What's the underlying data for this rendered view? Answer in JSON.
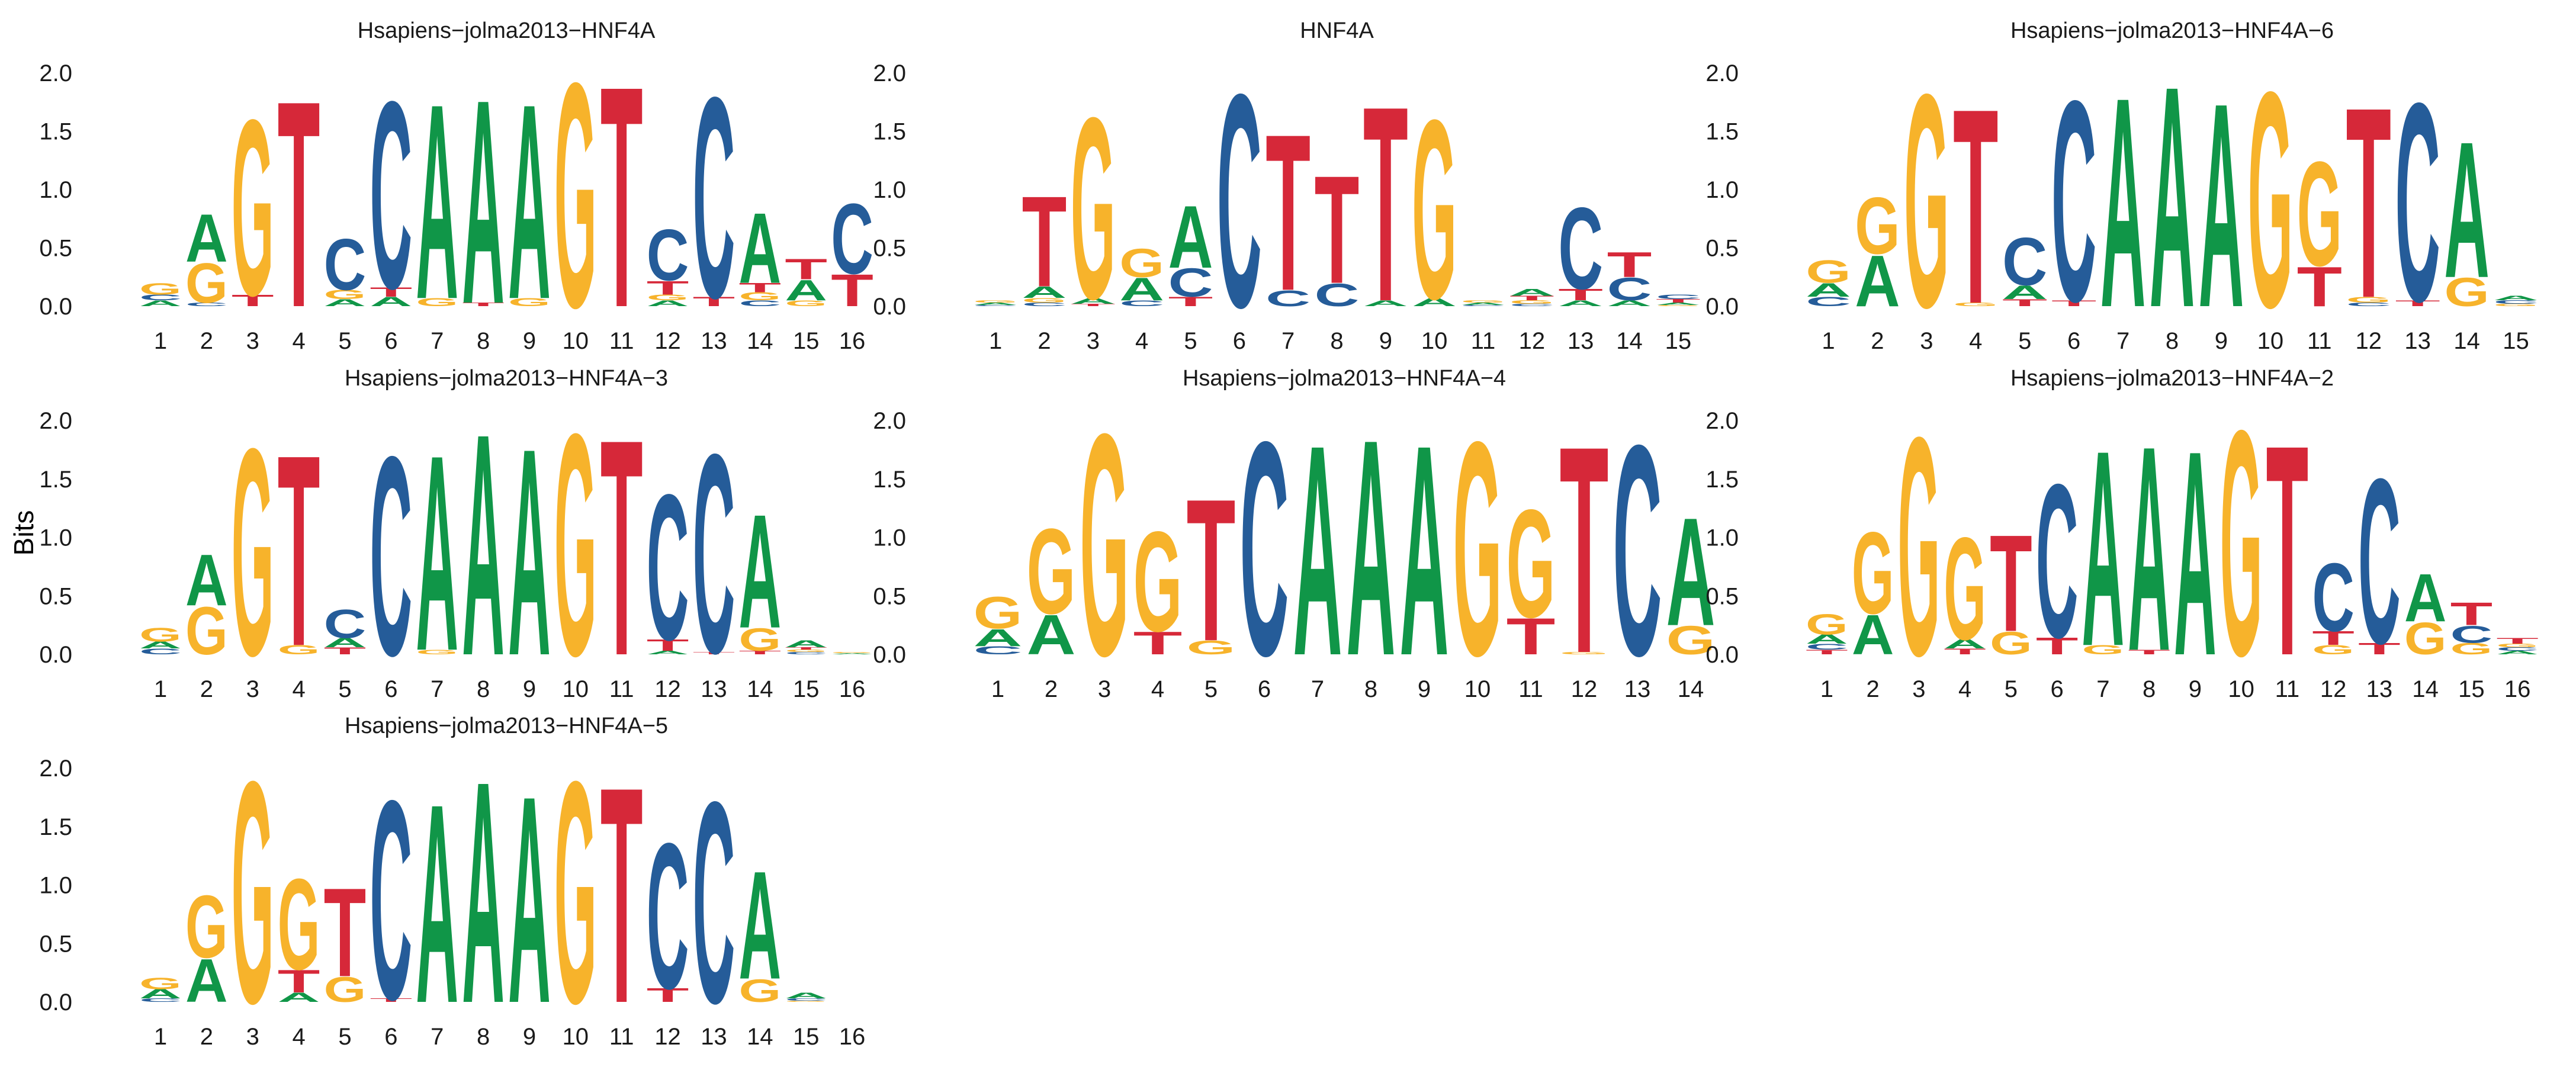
{
  "ylabel": "Bits",
  "colors": {
    "A": "#109648",
    "C": "#255C99",
    "G": "#F7B32B",
    "T": "#D62839"
  },
  "chart_data": [
    {
      "type": "sequence-logo",
      "title": "Hsapiens−jolma2013−HNF4A",
      "ylabel": "Bits",
      "ylim": [
        0,
        2
      ],
      "yticks": [
        "0.0",
        "0.5",
        "1.0",
        "1.5",
        "2.0"
      ],
      "positions": [
        "1",
        "2",
        "3",
        "4",
        "5",
        "6",
        "7",
        "8",
        "9",
        "10",
        "11",
        "12",
        "13",
        "14",
        "15",
        "16"
      ],
      "columns": [
        {
          "A": 0.05,
          "C": 0.05,
          "G": 0.1,
          "T": 0.0
        },
        {
          "A": 0.42,
          "C": 0.03,
          "G": 0.35,
          "T": 0.0
        },
        {
          "A": 0.0,
          "C": 0.0,
          "G": 1.55,
          "T": 0.1
        },
        {
          "A": 0.0,
          "C": 0.0,
          "G": 0.0,
          "T": 1.82
        },
        {
          "A": 0.06,
          "C": 0.45,
          "G": 0.08,
          "T": 0.0
        },
        {
          "A": 0.08,
          "C": 1.65,
          "G": 0.0,
          "T": 0.08
        },
        {
          "A": 1.72,
          "C": 0.0,
          "G": 0.07,
          "T": 0.0
        },
        {
          "A": 1.8,
          "C": 0.0,
          "G": 0.0,
          "T": 0.03
        },
        {
          "A": 1.72,
          "C": 0.0,
          "G": 0.07,
          "T": 0.0
        },
        {
          "A": 0.0,
          "C": 0.0,
          "G": 1.98,
          "T": 0.0
        },
        {
          "A": 0.0,
          "C": 0.0,
          "G": 0.0,
          "T": 1.95
        },
        {
          "A": 0.05,
          "C": 0.45,
          "G": 0.05,
          "T": 0.12
        },
        {
          "A": 0.0,
          "C": 1.77,
          "G": 0.0,
          "T": 0.08
        },
        {
          "A": 0.62,
          "C": 0.05,
          "G": 0.07,
          "T": 0.08
        },
        {
          "A": 0.18,
          "C": 0.0,
          "G": 0.05,
          "T": 0.18
        },
        {
          "A": 0.0,
          "C": 0.62,
          "G": 0.0,
          "T": 0.28
        }
      ]
    },
    {
      "type": "sequence-logo",
      "title": "HNF4A",
      "ylabel": "Bits",
      "ylim": [
        0,
        2
      ],
      "yticks": [
        "0.0",
        "0.5",
        "1.0",
        "1.5",
        "2.0"
      ],
      "positions": [
        "1",
        "2",
        "3",
        "4",
        "5",
        "6",
        "7",
        "8",
        "9",
        "10",
        "11",
        "12",
        "13",
        "14",
        "15"
      ],
      "columns": [
        {
          "A": 0.02,
          "C": 0.01,
          "G": 0.02,
          "T": 0.0
        },
        {
          "A": 0.1,
          "C": 0.03,
          "G": 0.04,
          "T": 0.8
        },
        {
          "A": 0.05,
          "C": 0.0,
          "G": 1.6,
          "T": 0.02
        },
        {
          "A": 0.2,
          "C": 0.05,
          "G": 0.25,
          "T": 0.0
        },
        {
          "A": 0.55,
          "C": 0.25,
          "G": 0.0,
          "T": 0.08
        },
        {
          "A": 0.0,
          "C": 1.88,
          "G": 0.0,
          "T": 0.0
        },
        {
          "A": 0.0,
          "C": 0.14,
          "G": 0.0,
          "T": 1.38
        },
        {
          "A": 0.0,
          "C": 0.2,
          "G": 0.0,
          "T": 0.95
        },
        {
          "A": 0.05,
          "C": 0.0,
          "G": 0.0,
          "T": 1.72
        },
        {
          "A": 0.07,
          "C": 0.0,
          "G": 1.58,
          "T": 0.0
        },
        {
          "A": 0.02,
          "C": 0.01,
          "G": 0.02,
          "T": 0.0
        },
        {
          "A": 0.06,
          "C": 0.02,
          "G": 0.03,
          "T": 0.04
        },
        {
          "A": 0.05,
          "C": 0.72,
          "G": 0.0,
          "T": 0.1
        },
        {
          "A": 0.05,
          "C": 0.2,
          "G": 0.0,
          "T": 0.22
        },
        {
          "A": 0.02,
          "C": 0.04,
          "G": 0.01,
          "T": 0.03
        }
      ]
    },
    {
      "type": "sequence-logo",
      "title": "Hsapiens−jolma2013−HNF4A−6",
      "ylabel": "Bits",
      "ylim": [
        0,
        2
      ],
      "yticks": [
        "0.0",
        "0.5",
        "1.0",
        "1.5",
        "2.0"
      ],
      "positions": [
        "1",
        "2",
        "3",
        "4",
        "5",
        "6",
        "7",
        "8",
        "9",
        "10",
        "11",
        "12",
        "13",
        "14",
        "15"
      ],
      "columns": [
        {
          "A": 0.12,
          "C": 0.08,
          "G": 0.2,
          "T": 0.0
        },
        {
          "A": 0.45,
          "C": 0.0,
          "G": 0.5,
          "T": 0.0
        },
        {
          "A": 0.0,
          "C": 0.0,
          "G": 1.88,
          "T": 0.0
        },
        {
          "A": 0.0,
          "C": 0.0,
          "G": 0.03,
          "T": 1.72
        },
        {
          "A": 0.12,
          "C": 0.42,
          "G": 0.0,
          "T": 0.06
        },
        {
          "A": 0.0,
          "C": 1.77,
          "G": 0.0,
          "T": 0.05
        },
        {
          "A": 1.85,
          "C": 0.0,
          "G": 0.0,
          "T": 0.0
        },
        {
          "A": 1.95,
          "C": 0.0,
          "G": 0.0,
          "T": 0.0
        },
        {
          "A": 1.8,
          "C": 0.0,
          "G": 0.0,
          "T": 0.0
        },
        {
          "A": 0.0,
          "C": 0.0,
          "G": 1.9,
          "T": 0.0
        },
        {
          "A": 0.0,
          "C": 0.0,
          "G": 0.92,
          "T": 0.35
        },
        {
          "A": 0.0,
          "C": 0.03,
          "G": 0.05,
          "T": 1.68
        },
        {
          "A": 0.0,
          "C": 1.75,
          "G": 0.0,
          "T": 0.05
        },
        {
          "A": 1.2,
          "C": 0.0,
          "G": 0.25,
          "T": 0.0
        },
        {
          "A": 0.04,
          "C": 0.03,
          "G": 0.02,
          "T": 0.0
        }
      ]
    },
    {
      "type": "sequence-logo",
      "title": "Hsapiens−jolma2013−HNF4A−3",
      "ylabel": "Bits",
      "ylim": [
        0,
        2
      ],
      "yticks": [
        "0.0",
        "0.5",
        "1.0",
        "1.5",
        "2.0"
      ],
      "positions": [
        "1",
        "2",
        "3",
        "4",
        "5",
        "6",
        "7",
        "8",
        "9",
        "10",
        "11",
        "12",
        "13",
        "14",
        "15",
        "16"
      ],
      "columns": [
        {
          "A": 0.06,
          "C": 0.05,
          "G": 0.12,
          "T": 0.0
        },
        {
          "A": 0.45,
          "C": 0.0,
          "G": 0.42,
          "T": 0.0
        },
        {
          "A": 0.0,
          "C": 0.0,
          "G": 1.82,
          "T": 0.0
        },
        {
          "A": 0.0,
          "C": 0.0,
          "G": 0.08,
          "T": 1.68
        },
        {
          "A": 0.08,
          "C": 0.25,
          "G": 0.0,
          "T": 0.06
        },
        {
          "A": 0.0,
          "C": 1.75,
          "G": 0.0,
          "T": 0.0
        },
        {
          "A": 1.72,
          "C": 0.0,
          "G": 0.04,
          "T": 0.0
        },
        {
          "A": 1.95,
          "C": 0.0,
          "G": 0.0,
          "T": 0.0
        },
        {
          "A": 1.82,
          "C": 0.0,
          "G": 0.0,
          "T": 0.0
        },
        {
          "A": 0.0,
          "C": 0.0,
          "G": 1.95,
          "T": 0.0
        },
        {
          "A": 0.0,
          "C": 0.0,
          "G": 0.0,
          "T": 1.9
        },
        {
          "A": 0.03,
          "C": 1.28,
          "G": 0.0,
          "T": 0.1
        },
        {
          "A": 0.0,
          "C": 1.75,
          "G": 0.0,
          "T": 0.02
        },
        {
          "A": 1.0,
          "C": 0.0,
          "G": 0.2,
          "T": 0.03
        },
        {
          "A": 0.06,
          "C": 0.02,
          "G": 0.02,
          "T": 0.02
        },
        {
          "A": 0.01,
          "C": 0.0,
          "G": 0.01,
          "T": 0.0
        }
      ]
    },
    {
      "type": "sequence-logo",
      "title": "Hsapiens−jolma2013−HNF4A−4",
      "ylabel": "Bits",
      "ylim": [
        0,
        2
      ],
      "yticks": [
        "0.0",
        "0.5",
        "1.0",
        "1.5",
        "2.0"
      ],
      "positions": [
        "1",
        "2",
        "3",
        "4",
        "5",
        "6",
        "7",
        "8",
        "9",
        "10",
        "11",
        "12",
        "13",
        "14"
      ],
      "columns": [
        {
          "A": 0.15,
          "C": 0.07,
          "G": 0.28,
          "T": 0.0
        },
        {
          "A": 0.35,
          "C": 0.0,
          "G": 0.75,
          "T": 0.0
        },
        {
          "A": 0.0,
          "C": 0.0,
          "G": 1.95,
          "T": 0.0
        },
        {
          "A": 0.0,
          "C": 0.0,
          "G": 0.88,
          "T": 0.2
        },
        {
          "A": 0.0,
          "C": 0.0,
          "G": 0.12,
          "T": 1.25
        },
        {
          "A": 0.0,
          "C": 1.88,
          "G": 0.0,
          "T": 0.0
        },
        {
          "A": 1.85,
          "C": 0.0,
          "G": 0.0,
          "T": 0.0
        },
        {
          "A": 1.9,
          "C": 0.0,
          "G": 0.0,
          "T": 0.0
        },
        {
          "A": 1.85,
          "C": 0.0,
          "G": 0.0,
          "T": 0.0
        },
        {
          "A": 0.0,
          "C": 0.0,
          "G": 1.88,
          "T": 0.0
        },
        {
          "A": 0.0,
          "C": 0.0,
          "G": 0.95,
          "T": 0.32
        },
        {
          "A": 0.0,
          "C": 0.0,
          "G": 0.02,
          "T": 1.82
        },
        {
          "A": 0.0,
          "C": 1.85,
          "G": 0.0,
          "T": 0.0
        },
        {
          "A": 0.95,
          "C": 0.0,
          "G": 0.25,
          "T": 0.0
        }
      ]
    },
    {
      "type": "sequence-logo",
      "title": "Hsapiens−jolma2013−HNF4A−2",
      "ylabel": "Bits",
      "ylim": [
        0,
        2
      ],
      "yticks": [
        "0.0",
        "0.5",
        "1.0",
        "1.5",
        "2.0"
      ],
      "positions": [
        "1",
        "2",
        "3",
        "4",
        "5",
        "6",
        "7",
        "8",
        "9",
        "10",
        "11",
        "12",
        "13",
        "14",
        "15",
        "16"
      ],
      "columns": [
        {
          "A": 0.08,
          "C": 0.05,
          "G": 0.18,
          "T": 0.04
        },
        {
          "A": 0.35,
          "C": 0.0,
          "G": 0.72,
          "T": 0.0
        },
        {
          "A": 0.0,
          "C": 0.0,
          "G": 1.92,
          "T": 0.0
        },
        {
          "A": 0.08,
          "C": 0.0,
          "G": 0.9,
          "T": 0.05
        },
        {
          "A": 0.0,
          "C": 0.0,
          "G": 0.2,
          "T": 0.85
        },
        {
          "A": 0.0,
          "C": 1.35,
          "G": 0.0,
          "T": 0.15
        },
        {
          "A": 1.72,
          "C": 0.0,
          "G": 0.08,
          "T": 0.0
        },
        {
          "A": 1.8,
          "C": 0.0,
          "G": 0.0,
          "T": 0.04
        },
        {
          "A": 1.8,
          "C": 0.0,
          "G": 0.0,
          "T": 0.0
        },
        {
          "A": 0.0,
          "C": 0.0,
          "G": 1.98,
          "T": 0.0
        },
        {
          "A": 0.0,
          "C": 0.0,
          "G": 0.0,
          "T": 1.85
        },
        {
          "A": 0.0,
          "C": 0.6,
          "G": 0.08,
          "T": 0.12
        },
        {
          "A": 0.0,
          "C": 1.45,
          "G": 0.0,
          "T": 0.1
        },
        {
          "A": 0.42,
          "C": 0.0,
          "G": 0.28,
          "T": 0.0
        },
        {
          "A": 0.0,
          "C": 0.15,
          "G": 0.1,
          "T": 0.2
        },
        {
          "A": 0.03,
          "C": 0.03,
          "G": 0.03,
          "T": 0.05
        }
      ]
    },
    {
      "type": "sequence-logo",
      "title": "Hsapiens−jolma2013−HNF4A−5",
      "ylabel": "Bits",
      "ylim": [
        0,
        2
      ],
      "yticks": [
        "0.0",
        "0.5",
        "1.0",
        "1.5",
        "2.0"
      ],
      "positions": [
        "1",
        "2",
        "3",
        "4",
        "5",
        "6",
        "7",
        "8",
        "9",
        "10",
        "11",
        "12",
        "13",
        "14",
        "15",
        "16"
      ],
      "columns": [
        {
          "A": 0.08,
          "C": 0.03,
          "G": 0.1,
          "T": 0.0
        },
        {
          "A": 0.38,
          "C": 0.0,
          "G": 0.55,
          "T": 0.0
        },
        {
          "A": 0.0,
          "C": 0.0,
          "G": 1.95,
          "T": 0.0
        },
        {
          "A": 0.08,
          "C": 0.0,
          "G": 0.8,
          "T": 0.2
        },
        {
          "A": 0.0,
          "C": 0.0,
          "G": 0.22,
          "T": 0.78
        },
        {
          "A": 0.0,
          "C": 1.75,
          "G": 0.0,
          "T": 0.03
        },
        {
          "A": 1.75,
          "C": 0.0,
          "G": 0.0,
          "T": 0.0
        },
        {
          "A": 1.95,
          "C": 0.0,
          "G": 0.0,
          "T": 0.0
        },
        {
          "A": 1.82,
          "C": 0.0,
          "G": 0.0,
          "T": 0.0
        },
        {
          "A": 0.0,
          "C": 0.0,
          "G": 1.95,
          "T": 0.0
        },
        {
          "A": 0.0,
          "C": 0.0,
          "G": 0.0,
          "T": 1.9
        },
        {
          "A": 0.0,
          "C": 1.28,
          "G": 0.0,
          "T": 0.12
        },
        {
          "A": 0.0,
          "C": 1.77,
          "G": 0.0,
          "T": 0.0
        },
        {
          "A": 0.95,
          "C": 0.0,
          "G": 0.2,
          "T": 0.0
        },
        {
          "A": 0.05,
          "C": 0.02,
          "G": 0.01,
          "T": 0.0
        },
        {
          "A": 0.0,
          "C": 0.0,
          "G": 0.0,
          "T": 0.0
        }
      ]
    }
  ]
}
